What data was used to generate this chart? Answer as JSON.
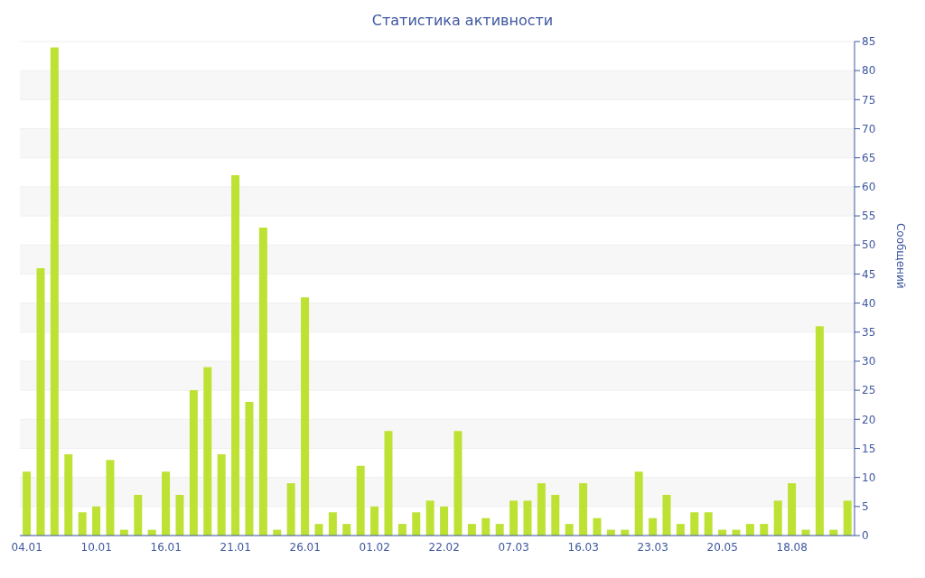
{
  "chart_data": {
    "type": "bar",
    "title": "Статистика активности",
    "ylabel": "Сообщений",
    "categories": [
      "04.01",
      null,
      null,
      null,
      null,
      "10.01",
      null,
      null,
      null,
      null,
      "16.01",
      null,
      null,
      null,
      null,
      "21.01",
      null,
      null,
      null,
      null,
      "26.01",
      null,
      null,
      null,
      null,
      "01.02",
      null,
      null,
      null,
      null,
      "22.02",
      null,
      null,
      null,
      null,
      "07.03",
      null,
      null,
      null,
      null,
      "16.03",
      null,
      null,
      null,
      null,
      "23.03",
      null,
      null,
      null,
      null,
      "20.05",
      null,
      null,
      null,
      null,
      "18.08",
      null,
      null,
      null,
      null
    ],
    "values": [
      11,
      46,
      84,
      14,
      4,
      5,
      13,
      1,
      7,
      1,
      11,
      7,
      25,
      29,
      14,
      62,
      23,
      53,
      1,
      9,
      41,
      2,
      4,
      2,
      12,
      5,
      18,
      2,
      4,
      6,
      5,
      18,
      2,
      3,
      2,
      6,
      6,
      9,
      7,
      2,
      9,
      3,
      1,
      1,
      11,
      3,
      7,
      2,
      4,
      4,
      1,
      1,
      2,
      2,
      6,
      9,
      1,
      36,
      1,
      6
    ],
    "color": "#bde234",
    "ylim": [
      0,
      85
    ],
    "yticks": [
      0,
      5,
      10,
      15,
      20,
      25,
      30,
      35,
      40,
      45,
      50,
      55,
      60,
      65,
      70,
      75,
      80,
      85
    ],
    "grid": "y"
  }
}
